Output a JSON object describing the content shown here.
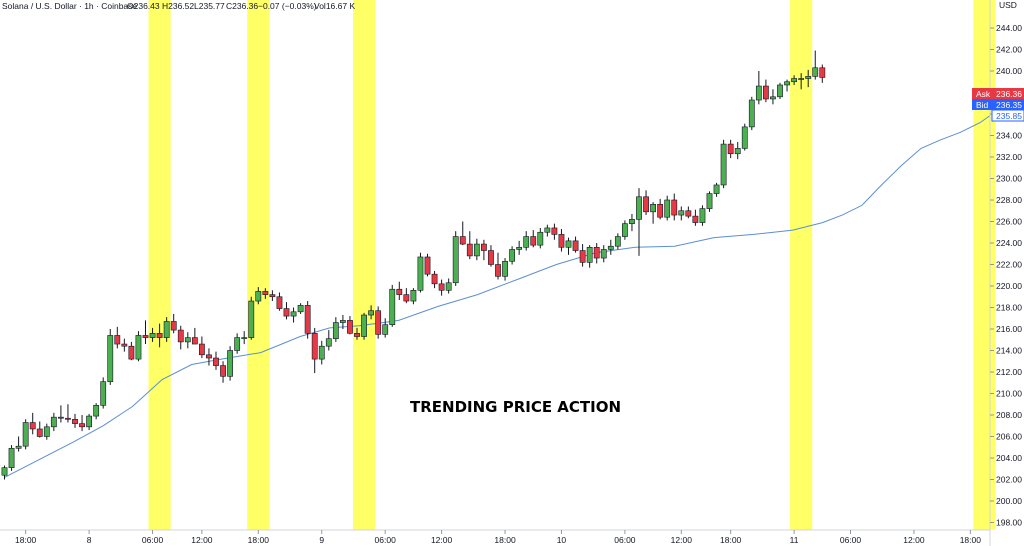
{
  "header": {
    "symbol": "Solana / U.S. Dollar · 1h · Coinbase",
    "open_label": "O",
    "open": "236.43",
    "high_label": "H",
    "high": "236.52",
    "low_label": "L",
    "low": "235.77",
    "close_label": "C",
    "close": "236.36",
    "change": "−0.07 (−0.03%)",
    "vol_label": "Vol",
    "vol": "16.67 K"
  },
  "annotation": "TRENDING PRICE ACTION",
  "price_tags": {
    "ask_label": "Ask",
    "ask_value": "236.36",
    "bid_label": "Bid",
    "bid_value": "236.35",
    "ma_value": "235.85"
  },
  "colors": {
    "up": "#4caf50",
    "down": "#e53945",
    "wick": "#131722",
    "ma_line": "#5b8fd1",
    "highlight": "#ffff66",
    "ask_tag": "#e53945",
    "bid_tag": "#2962ff"
  },
  "chart_data": {
    "type": "candlestick",
    "y_axis": {
      "label": "USD",
      "ticks": [
        "244.00",
        "242.00",
        "240.00",
        "238.00",
        "236.00",
        "234.00",
        "232.00",
        "230.00",
        "228.00",
        "226.00",
        "224.00",
        "222.00",
        "220.00",
        "218.00",
        "216.00",
        "214.00",
        "212.00",
        "210.00",
        "208.00",
        "206.00",
        "204.00",
        "202.00",
        "200.00",
        "198.00"
      ],
      "ylim": [
        198,
        245
      ]
    },
    "x_axis": {
      "ticks": [
        "18:00",
        "8",
        "06:00",
        "12:00",
        "18:00",
        "9",
        "06:00",
        "12:00",
        "18:00",
        "10",
        "06:00",
        "12:00",
        "18:00",
        "11",
        "06:00",
        "12:00",
        "18:00",
        "12",
        "06:00"
      ],
      "tick_index": [
        3,
        12,
        21,
        28,
        36,
        45,
        54,
        62,
        71,
        79,
        88,
        96,
        103,
        112,
        120,
        129,
        137,
        146,
        153
      ]
    },
    "grid": false,
    "highlight_bar_ranges": [
      [
        21,
        23
      ],
      [
        35,
        37
      ],
      [
        50,
        52
      ],
      [
        112,
        114
      ],
      [
        138,
        140
      ]
    ],
    "candles": [
      [
        202.4,
        203.3,
        202.0,
        203.1
      ],
      [
        203.1,
        205.2,
        202.8,
        204.9
      ],
      [
        204.9,
        206.0,
        204.6,
        205.1
      ],
      [
        205.1,
        207.6,
        204.8,
        207.3
      ],
      [
        207.3,
        208.2,
        206.2,
        206.7
      ],
      [
        206.7,
        207.4,
        205.9,
        206.0
      ],
      [
        206.0,
        207.2,
        205.7,
        206.9
      ],
      [
        206.9,
        208.2,
        206.5,
        207.8
      ],
      [
        207.8,
        208.9,
        207.3,
        207.7
      ],
      [
        207.7,
        209.0,
        207.3,
        207.6
      ],
      [
        207.6,
        208.1,
        206.8,
        207.2
      ],
      [
        207.2,
        208.0,
        206.5,
        206.9
      ],
      [
        206.9,
        208.1,
        206.6,
        207.9
      ],
      [
        207.9,
        209.1,
        207.6,
        208.9
      ],
      [
        208.9,
        211.5,
        208.6,
        211.1
      ],
      [
        211.1,
        216.0,
        210.8,
        215.4
      ],
      [
        215.4,
        216.2,
        214.2,
        214.6
      ],
      [
        214.6,
        215.1,
        213.9,
        214.4
      ],
      [
        214.4,
        214.8,
        213.1,
        213.2
      ],
      [
        213.2,
        215.8,
        213.0,
        215.4
      ],
      [
        215.4,
        216.8,
        214.6,
        215.2
      ],
      [
        215.2,
        216.1,
        214.8,
        215.6
      ],
      [
        215.6,
        216.5,
        214.3,
        215.2
      ],
      [
        215.2,
        217.1,
        214.8,
        216.7
      ],
      [
        216.7,
        217.4,
        215.6,
        215.9
      ],
      [
        215.9,
        216.3,
        214.1,
        214.8
      ],
      [
        214.8,
        215.7,
        214.2,
        215.2
      ],
      [
        215.2,
        216.1,
        214.6,
        214.6
      ],
      [
        214.6,
        215.3,
        213.3,
        213.6
      ],
      [
        213.6,
        214.2,
        212.6,
        213.3
      ],
      [
        213.3,
        213.9,
        212.2,
        212.6
      ],
      [
        212.6,
        213.0,
        211.0,
        211.6
      ],
      [
        211.6,
        214.4,
        211.2,
        214.0
      ],
      [
        214.0,
        215.6,
        213.7,
        215.2
      ],
      [
        215.2,
        215.8,
        214.6,
        215.2
      ],
      [
        215.2,
        219.0,
        215.0,
        218.6
      ],
      [
        218.6,
        219.9,
        218.3,
        219.5
      ],
      [
        219.5,
        219.8,
        218.8,
        219.2
      ],
      [
        219.2,
        219.6,
        218.6,
        219.0
      ],
      [
        219.0,
        219.4,
        217.7,
        217.9
      ],
      [
        217.9,
        218.5,
        216.9,
        217.2
      ],
      [
        217.2,
        218.0,
        216.6,
        217.6
      ],
      [
        217.6,
        218.4,
        217.4,
        218.2
      ],
      [
        218.2,
        218.6,
        215.1,
        215.6
      ],
      [
        215.6,
        216.1,
        211.9,
        213.2
      ],
      [
        213.2,
        214.9,
        212.7,
        214.4
      ],
      [
        214.4,
        215.9,
        214.0,
        215.1
      ],
      [
        215.1,
        217.1,
        214.8,
        216.6
      ],
      [
        216.6,
        217.3,
        216.0,
        216.8
      ],
      [
        216.8,
        217.2,
        215.5,
        215.6
      ],
      [
        215.6,
        216.1,
        215.0,
        215.3
      ],
      [
        215.3,
        217.5,
        215.0,
        217.3
      ],
      [
        217.3,
        218.2,
        216.9,
        217.7
      ],
      [
        217.7,
        218.1,
        215.1,
        215.5
      ],
      [
        215.5,
        217.0,
        215.2,
        216.4
      ],
      [
        216.4,
        220.1,
        216.2,
        219.7
      ],
      [
        219.7,
        220.4,
        218.7,
        219.2
      ],
      [
        219.2,
        219.8,
        218.4,
        218.6
      ],
      [
        218.6,
        219.8,
        218.3,
        219.6
      ],
      [
        219.6,
        223.1,
        219.4,
        222.7
      ],
      [
        222.7,
        223.0,
        220.9,
        221.1
      ],
      [
        221.1,
        221.4,
        219.8,
        220.2
      ],
      [
        220.2,
        220.6,
        219.1,
        219.6
      ],
      [
        219.6,
        220.7,
        219.3,
        220.3
      ],
      [
        220.3,
        225.1,
        220.0,
        224.6
      ],
      [
        224.6,
        226.0,
        223.8,
        223.9
      ],
      [
        223.9,
        225.1,
        222.5,
        222.8
      ],
      [
        222.8,
        224.4,
        222.4,
        223.9
      ],
      [
        223.9,
        224.3,
        222.4,
        223.3
      ],
      [
        223.3,
        223.8,
        221.8,
        222.0
      ],
      [
        222.0,
        223.1,
        220.6,
        220.9
      ],
      [
        220.9,
        222.6,
        220.5,
        222.3
      ],
      [
        222.3,
        223.7,
        222.0,
        223.4
      ],
      [
        223.4,
        224.2,
        222.9,
        223.6
      ],
      [
        223.6,
        225.1,
        223.3,
        224.6
      ],
      [
        224.6,
        225.2,
        223.6,
        223.8
      ],
      [
        223.8,
        225.4,
        223.5,
        225.0
      ],
      [
        225.0,
        225.7,
        224.6,
        225.4
      ],
      [
        225.4,
        225.8,
        224.3,
        224.8
      ],
      [
        224.8,
        225.3,
        223.2,
        223.6
      ],
      [
        223.6,
        224.5,
        222.9,
        224.2
      ],
      [
        224.2,
        224.6,
        223.1,
        223.3
      ],
      [
        223.3,
        223.9,
        221.8,
        222.2
      ],
      [
        222.2,
        223.8,
        221.7,
        223.6
      ],
      [
        223.6,
        224.0,
        222.1,
        222.6
      ],
      [
        222.6,
        223.8,
        222.2,
        223.4
      ],
      [
        223.4,
        224.3,
        222.9,
        223.7
      ],
      [
        223.7,
        224.9,
        223.4,
        224.6
      ],
      [
        224.6,
        226.1,
        224.3,
        225.8
      ],
      [
        225.8,
        226.7,
        225.1,
        226.2
      ],
      [
        226.2,
        229.1,
        222.8,
        228.3
      ],
      [
        228.3,
        228.9,
        226.6,
        226.9
      ],
      [
        226.9,
        227.8,
        225.8,
        227.6
      ],
      [
        227.6,
        228.1,
        226.2,
        226.4
      ],
      [
        226.4,
        228.4,
        226.1,
        228.0
      ],
      [
        228.0,
        228.6,
        226.1,
        226.6
      ],
      [
        226.6,
        227.4,
        226.1,
        227.0
      ],
      [
        227.0,
        227.4,
        226.3,
        226.5
      ],
      [
        226.5,
        227.1,
        225.6,
        225.9
      ],
      [
        225.9,
        227.5,
        225.6,
        227.2
      ],
      [
        227.2,
        228.8,
        226.9,
        228.6
      ],
      [
        228.6,
        229.6,
        228.3,
        229.4
      ],
      [
        229.4,
        233.6,
        229.1,
        233.2
      ],
      [
        233.2,
        233.6,
        231.9,
        232.3
      ],
      [
        232.3,
        233.4,
        231.8,
        232.8
      ],
      [
        232.8,
        235.1,
        232.6,
        234.8
      ],
      [
        234.8,
        237.6,
        234.5,
        237.3
      ],
      [
        237.3,
        240.0,
        236.9,
        238.6
      ],
      [
        238.6,
        239.2,
        237.1,
        237.4
      ],
      [
        237.4,
        238.3,
        236.9,
        237.6
      ],
      [
        237.6,
        238.9,
        237.4,
        238.7
      ],
      [
        238.7,
        239.2,
        238.1,
        239.0
      ],
      [
        239.0,
        239.6,
        238.7,
        239.3
      ],
      [
        239.3,
        239.8,
        238.3,
        239.3
      ],
      [
        239.3,
        240.1,
        238.5,
        239.5
      ],
      [
        239.5,
        241.9,
        239.2,
        240.3
      ],
      [
        240.3,
        240.6,
        238.9,
        239.4
      ]
    ],
    "moving_average": [
      [
        0,
        202.2
      ],
      [
        14,
        205.5
      ],
      [
        20,
        207.0
      ],
      [
        26,
        208.8
      ],
      [
        32,
        211.3
      ],
      [
        38,
        212.7
      ],
      [
        44,
        213.2
      ],
      [
        52,
        213.8
      ],
      [
        60,
        215.3
      ],
      [
        66,
        216.1
      ],
      [
        72,
        216.3
      ],
      [
        80,
        216.8
      ],
      [
        88,
        218.1
      ],
      [
        96,
        219.2
      ],
      [
        104,
        220.6
      ],
      [
        112,
        222.0
      ],
      [
        120,
        223.1
      ],
      [
        128,
        223.6
      ],
      [
        136,
        223.7
      ],
      [
        144,
        224.5
      ],
      [
        152,
        224.8
      ],
      [
        160,
        225.2
      ],
      [
        166,
        225.9
      ],
      [
        170,
        226.6
      ],
      [
        174,
        227.5
      ],
      [
        178,
        229.4
      ],
      [
        182,
        231.2
      ],
      [
        186,
        232.8
      ],
      [
        190,
        233.6
      ],
      [
        194,
        234.3
      ],
      [
        198,
        235.2
      ],
      [
        200,
        235.85
      ]
    ]
  }
}
